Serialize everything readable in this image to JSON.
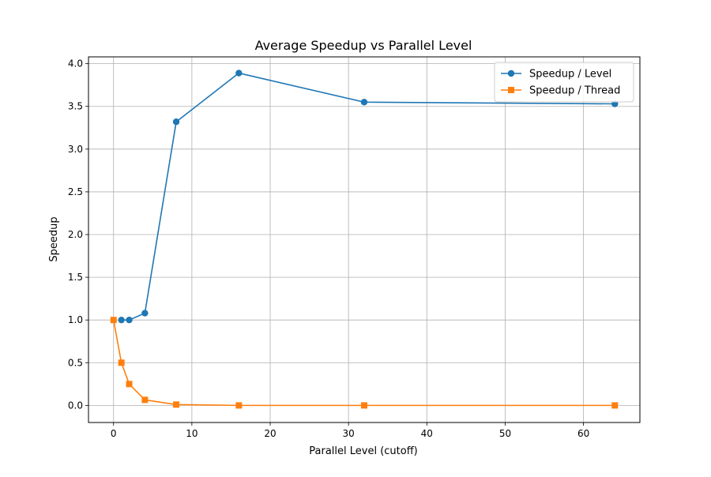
{
  "chart_data": {
    "type": "line",
    "title": "Average Speedup vs Parallel Level",
    "xlabel": "Parallel Level (cutoff)",
    "ylabel": "Speedup",
    "xlim": [
      -3.2,
      67.2
    ],
    "ylim": [
      -0.2,
      4.08
    ],
    "xticks": [
      0,
      10,
      20,
      30,
      40,
      50,
      60
    ],
    "xtick_labels": [
      "0",
      "10",
      "20",
      "30",
      "40",
      "50",
      "60"
    ],
    "yticks": [
      0.0,
      0.5,
      1.0,
      1.5,
      2.0,
      2.5,
      3.0,
      3.5,
      4.0
    ],
    "ytick_labels": [
      "0.0",
      "0.5",
      "1.0",
      "1.5",
      "2.0",
      "2.5",
      "3.0",
      "3.5",
      "4.0"
    ],
    "grid": true,
    "legend_position": "top-right",
    "series": [
      {
        "name": "Speedup / Level",
        "color": "#1f77b4",
        "marker": "circle",
        "x": [
          1,
          2,
          4,
          8,
          16,
          32,
          64
        ],
        "y": [
          1.0,
          1.0,
          1.08,
          3.32,
          3.89,
          3.55,
          3.53
        ]
      },
      {
        "name": "Speedup / Thread",
        "color": "#ff7f0e",
        "marker": "square",
        "x": [
          0,
          1,
          2,
          4,
          8,
          16,
          32,
          64
        ],
        "y": [
          1.0,
          0.5,
          0.25,
          0.065,
          0.01,
          0.0,
          0.0,
          0.0
        ]
      }
    ]
  }
}
